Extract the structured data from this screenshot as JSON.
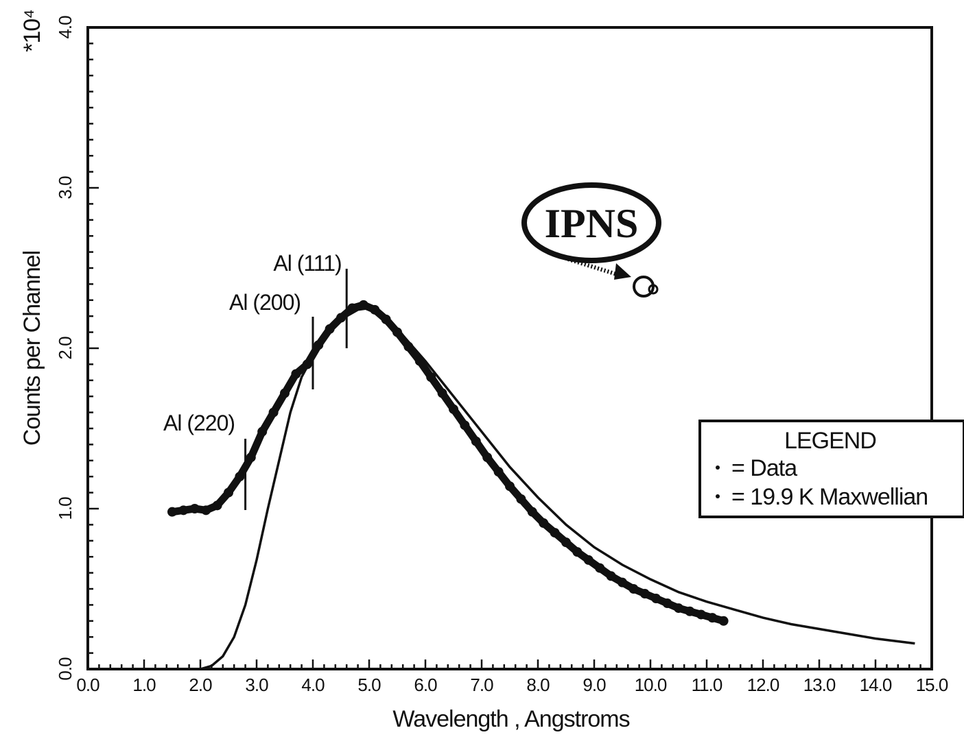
{
  "chart_data": {
    "type": "scatter",
    "title": "",
    "xlabel": "Wavelength ,  Angstroms",
    "ylabel": "Counts per Channel",
    "y_multiplier": "*10⁴",
    "xlim": [
      0,
      15
    ],
    "ylim": [
      0,
      4
    ],
    "x_ticks": [
      "0.0",
      "1.0",
      "2.0",
      "3.0",
      "4.0",
      "5.0",
      "6.0",
      "7.0",
      "8.0",
      "9.0",
      "10.0",
      "11.0",
      "12.0",
      "13.0",
      "14.0",
      "15.0"
    ],
    "y_ticks": [
      "0.0",
      "1.0",
      "2.0",
      "3.0",
      "4.0"
    ],
    "grid": false,
    "legend_position": "right",
    "legend": {
      "title": "LEGEND",
      "entries": [
        "= Data",
        "= 19.9 K Maxwellian"
      ]
    },
    "annotations": [
      {
        "label": "Al (220)",
        "x": 2.8
      },
      {
        "label": "Al (200)",
        "x": 4.0
      },
      {
        "label": "Al (111)",
        "x": 4.6
      }
    ],
    "logo": {
      "text": "IPNS"
    },
    "series": [
      {
        "name": "Data",
        "style": "points",
        "x": [
          1.5,
          1.7,
          1.9,
          2.1,
          2.3,
          2.5,
          2.7,
          2.9,
          3.1,
          3.3,
          3.5,
          3.7,
          3.9,
          4.1,
          4.3,
          4.5,
          4.7,
          4.9,
          5.1,
          5.3,
          5.5,
          5.7,
          5.9,
          6.1,
          6.3,
          6.5,
          6.7,
          6.9,
          7.1,
          7.3,
          7.5,
          7.7,
          7.9,
          8.1,
          8.3,
          8.5,
          8.7,
          8.9,
          9.1,
          9.3,
          9.5,
          9.7,
          9.9,
          10.1,
          10.3,
          10.5,
          10.7,
          10.9,
          11.1,
          11.3
        ],
        "y": [
          0.98,
          0.99,
          1.0,
          0.99,
          1.02,
          1.1,
          1.2,
          1.32,
          1.48,
          1.6,
          1.72,
          1.84,
          1.9,
          2.02,
          2.12,
          2.19,
          2.25,
          2.27,
          2.24,
          2.18,
          2.1,
          2.01,
          1.92,
          1.82,
          1.72,
          1.62,
          1.52,
          1.42,
          1.32,
          1.23,
          1.14,
          1.06,
          0.98,
          0.91,
          0.85,
          0.79,
          0.73,
          0.68,
          0.63,
          0.58,
          0.54,
          0.5,
          0.47,
          0.44,
          0.41,
          0.38,
          0.36,
          0.34,
          0.32,
          0.3
        ]
      },
      {
        "name": "19.9 K Maxwellian",
        "style": "line",
        "x": [
          2.0,
          2.2,
          2.4,
          2.6,
          2.8,
          3.0,
          3.2,
          3.4,
          3.6,
          3.8,
          4.0,
          4.2,
          4.4,
          4.6,
          4.8,
          5.0,
          5.5,
          6.0,
          6.5,
          7.0,
          7.5,
          8.0,
          8.5,
          9.0,
          9.5,
          10.0,
          10.5,
          11.0,
          11.5,
          12.0,
          12.5,
          13.0,
          13.5,
          14.0,
          14.7
        ],
        "y": [
          0.0,
          0.02,
          0.08,
          0.2,
          0.4,
          0.68,
          1.0,
          1.3,
          1.6,
          1.82,
          1.95,
          2.07,
          2.15,
          2.2,
          2.24,
          2.25,
          2.12,
          1.92,
          1.7,
          1.48,
          1.26,
          1.07,
          0.9,
          0.76,
          0.65,
          0.56,
          0.48,
          0.42,
          0.37,
          0.32,
          0.28,
          0.25,
          0.22,
          0.19,
          0.16
        ]
      }
    ]
  }
}
